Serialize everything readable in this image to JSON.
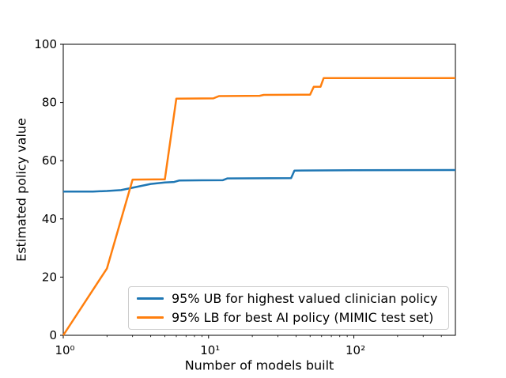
{
  "chart_data": {
    "type": "line",
    "title": "",
    "xlabel": "Number of models built",
    "ylabel": "Estimated policy value",
    "x_scale": "log",
    "y_scale": "linear",
    "xlim": [
      1,
      500
    ],
    "ylim": [
      0,
      100
    ],
    "grid": false,
    "legend_position": "lower center inside axes",
    "x_major_ticks": [
      {
        "value": 1,
        "label": "10⁰"
      },
      {
        "value": 10,
        "label": "10¹"
      },
      {
        "value": 100,
        "label": "10²"
      }
    ],
    "x_minor_ticks": [
      2,
      3,
      4,
      5,
      6,
      7,
      8,
      9,
      20,
      30,
      40,
      50,
      60,
      70,
      80,
      90,
      200,
      300,
      400
    ],
    "y_ticks": [
      {
        "value": 0,
        "label": "0"
      },
      {
        "value": 20,
        "label": "20"
      },
      {
        "value": 40,
        "label": "40"
      },
      {
        "value": 60,
        "label": "60"
      },
      {
        "value": 80,
        "label": "80"
      },
      {
        "value": 100,
        "label": "100"
      }
    ],
    "series": [
      {
        "name": "95% UB for highest valued clinician policy",
        "color": "#1f77b4",
        "points": [
          [
            1,
            49.4
          ],
          [
            1.6,
            49.4
          ],
          [
            2,
            49.6
          ],
          [
            2.5,
            49.9
          ],
          [
            3,
            50.7
          ],
          [
            4,
            52.0
          ],
          [
            5,
            52.5
          ],
          [
            5.8,
            52.7
          ],
          [
            6.3,
            53.2
          ],
          [
            12.5,
            53.3
          ],
          [
            13.5,
            53.9
          ],
          [
            37,
            54.0
          ],
          [
            39,
            56.6
          ],
          [
            100,
            56.7
          ],
          [
            500,
            56.8
          ]
        ]
      },
      {
        "name": "95% LB for best AI policy (MIMIC test set)",
        "color": "#ff7f0e",
        "points": [
          [
            1,
            0
          ],
          [
            2,
            23
          ],
          [
            3,
            53.5
          ],
          [
            5,
            53.6
          ],
          [
            6,
            81.3
          ],
          [
            10.8,
            81.4
          ],
          [
            11.8,
            82.2
          ],
          [
            22.5,
            82.3
          ],
          [
            24,
            82.6
          ],
          [
            50,
            82.7
          ],
          [
            53,
            85.4
          ],
          [
            59,
            85.4
          ],
          [
            62,
            88.4
          ],
          [
            500,
            88.4
          ]
        ]
      }
    ]
  }
}
